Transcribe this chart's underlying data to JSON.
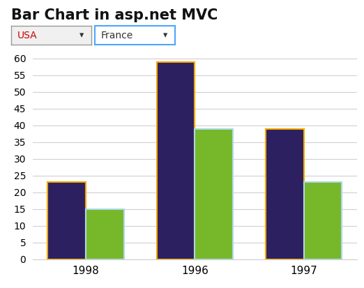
{
  "title": "Bar Chart in asp.net MVC",
  "title_fontsize": 15,
  "title_fontweight": "bold",
  "categories": [
    "1998",
    "1996",
    "1997"
  ],
  "series1_label": "USA",
  "series2_label": "France",
  "series1_values": [
    23,
    59,
    39
  ],
  "series2_values": [
    15,
    39,
    23
  ],
  "bar_color1": "#2d2060",
  "bar_color2": "#76b82a",
  "orange_edge_color": "#f5a800",
  "cyan_edge_color": "#add8e6",
  "bar_width": 0.35,
  "ylim": [
    0,
    62
  ],
  "yticks": [
    0,
    5,
    10,
    15,
    20,
    25,
    30,
    35,
    40,
    45,
    50,
    55,
    60
  ],
  "grid_color": "#d0d0d0",
  "background_color": "#ffffff",
  "axis_border_color": "#cccccc",
  "usa_text_color": "#cc0000",
  "dropdown1_border_color": "#999999",
  "dropdown2_border_color": "#4da6ff",
  "tick_fontsize": 10,
  "xtick_fontsize": 11
}
